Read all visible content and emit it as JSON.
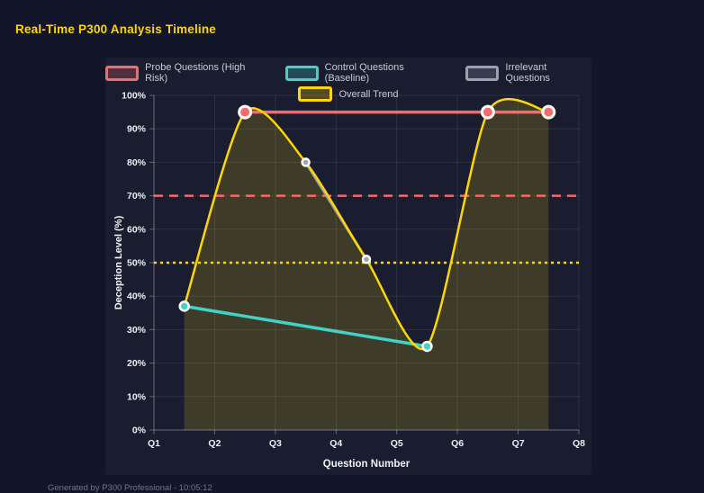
{
  "page": {
    "title": "Real-Time P300 Analysis Timeline",
    "footer": "Generated by P300 Professional - 10:05:12",
    "background": "#131629",
    "panel_background": "#1a1d30",
    "title_color": "#ffd700"
  },
  "chart_data": {
    "type": "line",
    "title": "Real-Time P300 Analysis Timeline",
    "xlabel": "Question Number",
    "ylabel": "Deception Level (%)",
    "x_categories": [
      "Q1",
      "Q2",
      "Q3",
      "Q4",
      "Q5",
      "Q6",
      "Q7",
      "Q8"
    ],
    "x_range": [
      1,
      8
    ],
    "ylim": [
      0,
      100
    ],
    "y_tick_step": 10,
    "y_tick_suffix": "%",
    "grid": true,
    "legend_position": "top",
    "series": [
      {
        "name": "Probe Questions (High Risk)",
        "color": "#f56a6a",
        "x": [
          2.5,
          6.5,
          7.5
        ],
        "values": [
          95,
          95,
          95
        ],
        "line_width": 3.5,
        "point_radius": 6.5,
        "point_border": 3,
        "smooth": false,
        "fill": false
      },
      {
        "name": "Control Questions (Baseline)",
        "color": "#41d4c6",
        "x": [
          1.5,
          5.5
        ],
        "values": [
          37,
          25
        ],
        "line_width": 3.5,
        "point_radius": 5,
        "point_border": 2.5,
        "smooth": false,
        "fill": false
      },
      {
        "name": "Irrelevant Questions",
        "color": "#9ba1ad",
        "x": [
          3.5,
          4.5
        ],
        "values": [
          80,
          51
        ],
        "line_width": 3,
        "point_radius": 4,
        "point_border": 2.5,
        "smooth": false,
        "fill": false
      },
      {
        "name": "Overall Trend",
        "color": "#ffd700",
        "x": [
          1.5,
          2.5,
          3.5,
          4.5,
          5.5,
          6.5,
          7.5
        ],
        "values": [
          37,
          95,
          80,
          51,
          25,
          95,
          95
        ],
        "line_width": 2.5,
        "point_radius": 0,
        "point_border": 0,
        "smooth": true,
        "fill": true,
        "fill_color": "rgba(255,215,0,0.16)"
      }
    ],
    "thresholds": [
      {
        "value": 70,
        "color": "#f56a6a",
        "dash": "10 7"
      },
      {
        "value": 50,
        "color": "#ffd700",
        "dash": "3 4"
      }
    ],
    "legend_rows": [
      [
        0,
        1,
        2
      ],
      [
        3
      ]
    ]
  }
}
